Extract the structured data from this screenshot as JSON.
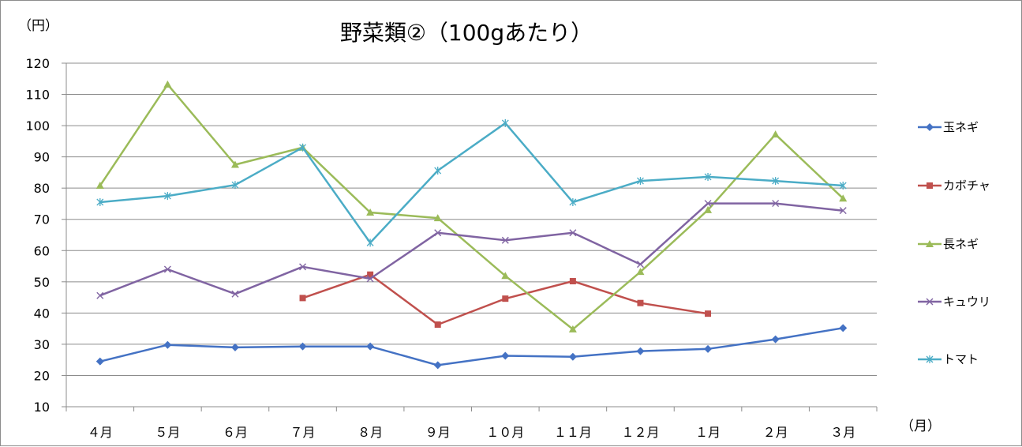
{
  "chart_data": {
    "type": "line",
    "title": "野菜類②（100gあたり）",
    "ylabel": "（円）",
    "xlabel": "（月）",
    "ylim": [
      10,
      120
    ],
    "yticks": [
      10,
      20,
      30,
      40,
      50,
      60,
      70,
      80,
      90,
      100,
      110,
      120
    ],
    "grid": true,
    "legend_position": "right",
    "categories": [
      "４月",
      "５月",
      "６月",
      "７月",
      "８月",
      "９月",
      "１０月",
      "１１月",
      "１２月",
      "１月",
      "２月",
      "３月"
    ],
    "series": [
      {
        "name": "玉ネギ",
        "color": "#4472c4",
        "marker": "diamond",
        "values": [
          24.5,
          29.8,
          29.0,
          29.3,
          29.3,
          23.3,
          26.3,
          26.0,
          27.8,
          28.5,
          31.6,
          35.2
        ]
      },
      {
        "name": "カボチャ",
        "color": "#c0504d",
        "marker": "square",
        "values": [
          null,
          null,
          null,
          44.8,
          52.3,
          36.3,
          44.6,
          50.2,
          43.2,
          39.8,
          null,
          null
        ]
      },
      {
        "name": "長ネギ",
        "color": "#9bbb59",
        "marker": "triangle",
        "values": [
          80.8,
          113.2,
          87.5,
          93.0,
          72.2,
          70.4,
          51.9,
          34.8,
          53.2,
          73.0,
          97.2,
          76.7
        ]
      },
      {
        "name": "キュウリ",
        "color": "#8064a2",
        "marker": "x",
        "values": [
          45.6,
          54.0,
          46.1,
          54.8,
          51.0,
          65.7,
          63.3,
          65.7,
          55.6,
          75.1,
          75.1,
          72.8
        ]
      },
      {
        "name": "トマト",
        "color": "#4bacc6",
        "marker": "star",
        "values": [
          75.5,
          77.5,
          81.0,
          93.0,
          62.5,
          85.6,
          100.8,
          75.5,
          82.3,
          83.6,
          82.3,
          80.8
        ]
      }
    ]
  }
}
